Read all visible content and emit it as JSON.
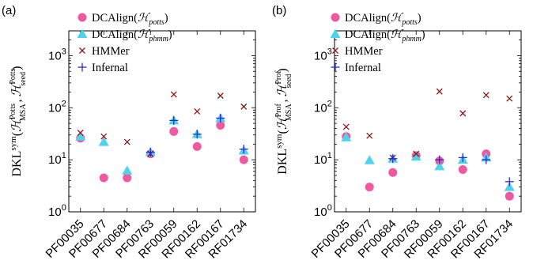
{
  "chart_data": [
    {
      "panel_label": "(a)",
      "type": "scatter",
      "categories": [
        "PF00035",
        "PF00677",
        "PF00684",
        "PF00763",
        "RF00059",
        "RF00162",
        "RF00167",
        "RF01734"
      ],
      "yscale": "log",
      "ylim": [
        1,
        3000
      ],
      "yticks": [
        {
          "base": "10",
          "exp": "0"
        },
        {
          "base": "10",
          "exp": "1"
        },
        {
          "base": "10",
          "exp": "2"
        },
        {
          "base": "10",
          "exp": "3"
        }
      ],
      "ylabel": {
        "main": "DKL",
        "sup1": "sym",
        "open": "(",
        "h1": "ℋ",
        "sup2": "Potts",
        "sub2": "MSA",
        "comma": ",",
        "h2": "ℋ",
        "sup3": "Potts",
        "sub3": "seed",
        "close": ")"
      },
      "legend_position": "top-left",
      "series": [
        {
          "name": "DCAlign(",
          "name_math": "ℋ",
          "name_sub": "potts",
          "name_end": ")",
          "marker": "circle",
          "color": "#f0589f",
          "values": [
            26,
            4.5,
            4.5,
            13,
            35,
            18,
            46,
            10
          ]
        },
        {
          "name": "DCAlign(",
          "name_math": "ℋ",
          "name_sub": "phmm",
          "name_end": ")",
          "marker": "triangle",
          "color": "#4fd3eb",
          "values": [
            28,
            22,
            6.2,
            14,
            57,
            31,
            63,
            15
          ]
        },
        {
          "name": "HMMer",
          "marker": "x",
          "color": "#8b1a1a",
          "values": [
            33,
            28,
            22,
            13,
            180,
            85,
            170,
            105
          ]
        },
        {
          "name": "Infernal",
          "marker": "plus",
          "color": "#2a2ad6",
          "values": [
            null,
            null,
            null,
            14,
            57,
            31,
            63,
            16
          ]
        }
      ]
    },
    {
      "panel_label": "(b)",
      "type": "scatter",
      "categories": [
        "PF00035",
        "PF00677",
        "PF00684",
        "PF00763",
        "RF00059",
        "RF00162",
        "RF00167",
        "RF01734"
      ],
      "yscale": "log",
      "ylim": [
        1,
        3000
      ],
      "yticks": [
        {
          "base": "10",
          "exp": "0"
        },
        {
          "base": "10",
          "exp": "1"
        },
        {
          "base": "10",
          "exp": "2"
        },
        {
          "base": "10",
          "exp": "3"
        }
      ],
      "ylabel": {
        "main": "DKL",
        "sup1": "sym",
        "open": "(",
        "h1": "ℋ",
        "sup2": "Prof",
        "sub2": "MSA",
        "comma": ",",
        "h2": "ℋ",
        "sup3": "Prof",
        "sub3": "seed",
        "close": ")"
      },
      "legend_position": "top-left",
      "series": [
        {
          "name": "DCAlign(",
          "name_math": "ℋ",
          "name_sub": "potts",
          "name_end": ")",
          "marker": "circle",
          "color": "#f0589f",
          "values": [
            28,
            3,
            5.7,
            12,
            9.5,
            6.5,
            13,
            2
          ]
        },
        {
          "name": "DCAlign(",
          "name_math": "ℋ",
          "name_sub": "phmm",
          "name_end": ")",
          "marker": "triangle",
          "color": "#4fd3eb",
          "values": [
            27,
            9.8,
            10.5,
            11.5,
            7.5,
            10,
            11,
            3
          ]
        },
        {
          "name": "HMMer",
          "marker": "x",
          "color": "#8b1a1a",
          "values": [
            43,
            29,
            11,
            13,
            205,
            78,
            175,
            150
          ]
        },
        {
          "name": "Infernal",
          "marker": "plus",
          "color": "#2a2ad6",
          "values": [
            null,
            null,
            10.5,
            null,
            10,
            11,
            10,
            3.8
          ]
        }
      ]
    }
  ]
}
